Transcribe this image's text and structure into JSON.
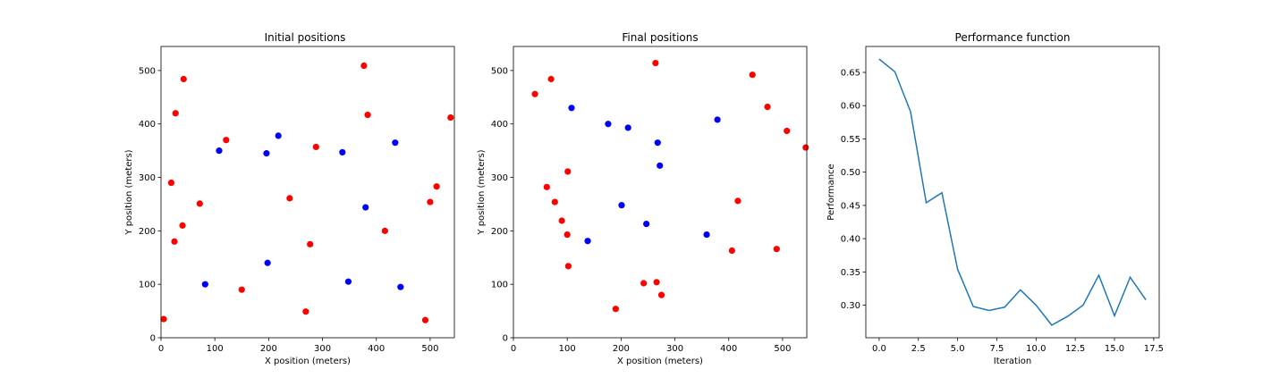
{
  "colors": {
    "red": "#ff0000",
    "blue": "#0000ff",
    "line": "#1f77b4"
  },
  "chart_data": [
    {
      "type": "scatter",
      "title": "Initial positions",
      "xlabel": "X position (meters)",
      "ylabel": "Y position (meters)",
      "xlim": [
        0,
        545
      ],
      "ylim": [
        0,
        545
      ],
      "xticks": [
        0,
        100,
        200,
        300,
        400,
        500
      ],
      "yticks": [
        0,
        100,
        200,
        300,
        400,
        500
      ],
      "xtick_labels": [
        "0",
        "100",
        "200",
        "300",
        "400",
        "500"
      ],
      "ytick_labels": [
        "0",
        "100",
        "200",
        "300",
        "400",
        "500"
      ],
      "series": [
        {
          "color": "red",
          "x": [
            5,
            19,
            25,
            27,
            40,
            42,
            72,
            121,
            150,
            239,
            269,
            277,
            288,
            377,
            384,
            416,
            491,
            500,
            512,
            538
          ],
          "y": [
            35,
            290,
            180,
            420,
            210,
            484,
            251,
            370,
            90,
            261,
            49,
            175,
            357,
            509,
            417,
            200,
            33,
            254,
            283,
            412
          ]
        },
        {
          "color": "blue",
          "x": [
            82,
            108,
            196,
            198,
            218,
            337,
            348,
            380,
            435,
            445
          ],
          "y": [
            100,
            350,
            345,
            140,
            378,
            347,
            105,
            244,
            365,
            95
          ]
        }
      ]
    },
    {
      "type": "scatter",
      "title": "Final positions",
      "xlabel": "X position (meters)",
      "ylabel": "Y position (meters)",
      "xlim": [
        0,
        545
      ],
      "ylim": [
        0,
        545
      ],
      "xticks": [
        0,
        100,
        200,
        300,
        400,
        500
      ],
      "yticks": [
        0,
        100,
        200,
        300,
        400,
        500
      ],
      "xtick_labels": [
        "0",
        "100",
        "200",
        "300",
        "400",
        "500"
      ],
      "ytick_labels": [
        "0",
        "100",
        "200",
        "300",
        "400",
        "500"
      ],
      "series": [
        {
          "color": "red",
          "x": [
            40,
            62,
            70,
            77,
            90,
            100,
            101,
            102,
            190,
            242,
            264,
            266,
            275,
            417,
            406,
            444,
            472,
            489,
            508,
            543
          ],
          "y": [
            456,
            282,
            484,
            254,
            219,
            193,
            311,
            134,
            54,
            102,
            514,
            104,
            80,
            256,
            163,
            492,
            432,
            166,
            387,
            356
          ]
        },
        {
          "color": "blue",
          "x": [
            108,
            138,
            176,
            201,
            213,
            247,
            268,
            272,
            359,
            379
          ],
          "y": [
            430,
            181,
            400,
            248,
            393,
            213,
            365,
            322,
            193,
            408
          ]
        }
      ]
    },
    {
      "type": "line",
      "title": "Performance function",
      "xlabel": "Iteration",
      "ylabel": "Performance",
      "xlim": [
        -0.85,
        17.85
      ],
      "ylim": [
        0.251,
        0.689
      ],
      "xticks": [
        0,
        2.5,
        5,
        7.5,
        10,
        12.5,
        15,
        17.5
      ],
      "yticks": [
        0.3,
        0.35,
        0.4,
        0.45,
        0.5,
        0.55,
        0.6,
        0.65
      ],
      "xtick_labels": [
        "0.0",
        "2.5",
        "5.0",
        "7.5",
        "10.0",
        "12.5",
        "15.0",
        "17.5"
      ],
      "ytick_labels": [
        "0.30",
        "0.35",
        "0.40",
        "0.45",
        "0.50",
        "0.55",
        "0.60",
        "0.65"
      ],
      "series": [
        {
          "color": "line",
          "x": [
            0,
            1,
            2,
            3,
            4,
            5,
            6,
            7,
            8,
            9,
            10,
            11,
            12,
            13,
            14,
            15,
            16,
            17
          ],
          "y": [
            0.67,
            0.651,
            0.591,
            0.454,
            0.469,
            0.354,
            0.298,
            0.292,
            0.297,
            0.323,
            0.3,
            0.27,
            0.283,
            0.3,
            0.345,
            0.284,
            0.342,
            0.308
          ]
        }
      ]
    }
  ]
}
